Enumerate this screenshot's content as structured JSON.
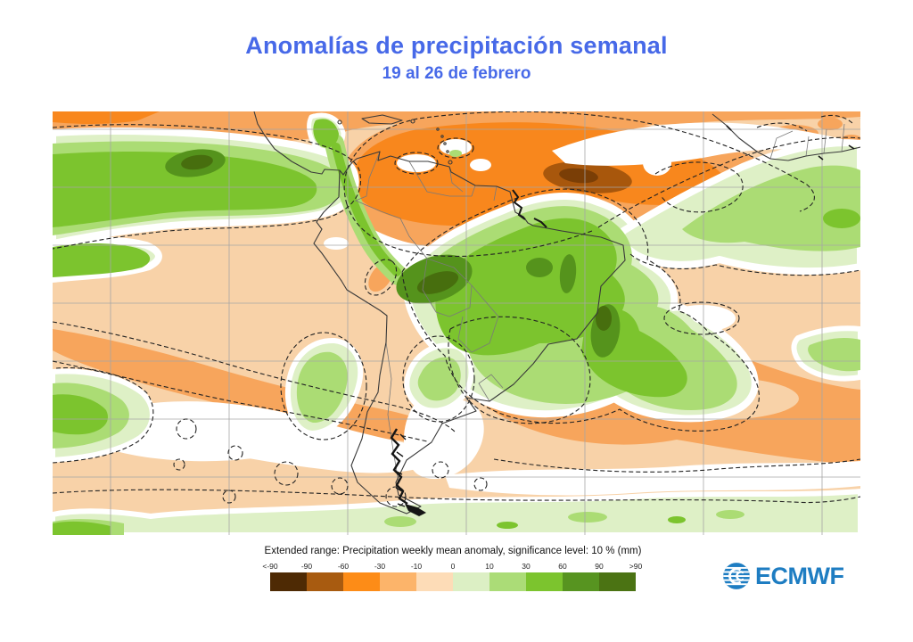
{
  "header": {
    "title": "Anomalías de precipitación semanal",
    "subtitle": "19 al 26 de febrero",
    "title_color": "#4769e8"
  },
  "legend": {
    "title": "Extended range: Precipitation weekly mean anomaly, significance level: 10 % (mm)",
    "tick_labels": [
      "<-90",
      "-90",
      "-60",
      "-30",
      "-10",
      "0",
      "10",
      "30",
      "60",
      "90",
      ">90"
    ],
    "cell_colors": [
      "#4e2a04",
      "#a85b10",
      "#fd8c17",
      "#fcb46a",
      "#fddcb7",
      "#dcefc4",
      "#abdc77",
      "#7cc42e",
      "#579420",
      "#4b7313"
    ],
    "units": "mm"
  },
  "branding": {
    "org": "ECMWF",
    "logo_color": "#1e7dc2"
  },
  "map_data": {
    "type": "filled-contour anomaly map",
    "area": "South America, eastern Pacific and tropical/south Atlantic (west Africa at top right)",
    "overlays": [
      "graticule grid",
      "coastlines and country borders",
      "dashed significance contours"
    ],
    "anomaly_regions": [
      {
        "area": "Equatorial eastern Pacific band (~5-15S)",
        "anomaly": "positive, 10-60 mm with >60 mm dark core"
      },
      {
        "area": "Northern Amazon / Guianas / Amazon mouth",
        "anomaly": "negative, -30 to -60 mm with <-60 mm brown core"
      },
      {
        "area": "Central Brazil / Bolivia",
        "anomaly": "positive, 30-90 mm cores"
      },
      {
        "area": "Northeast Brazil and tropical Atlantic band toward Africa",
        "anomaly": "positive, 10-30 mm"
      },
      {
        "area": "Paraguay / La Plata basin and south Atlantic band",
        "anomaly": "negative, -10 to -30 mm"
      },
      {
        "area": "Offshore southeast Brazil",
        "anomaly": "positive, 30-90 mm banana-shaped core"
      },
      {
        "area": "Subtropical south Pacific",
        "anomaly": "weak negative, 0 to -30 mm with insignificant white patches"
      },
      {
        "area": "Southern Ocean fringe at bottom",
        "anomaly": "weak positive, 0-10 mm"
      }
    ],
    "map_colors": {
      "background_weak_negative": "#f8d2a8",
      "moderate_negative": "#f7a55c",
      "strong_negative": "#f8871d",
      "very_strong_negative": "#a8570c",
      "weak_positive": "#def0c6",
      "moderate_positive": "#abdc74",
      "strong_positive": "#7cc42e",
      "very_strong_positive": "#55931c",
      "extreme_positive": "#476e0e"
    }
  }
}
